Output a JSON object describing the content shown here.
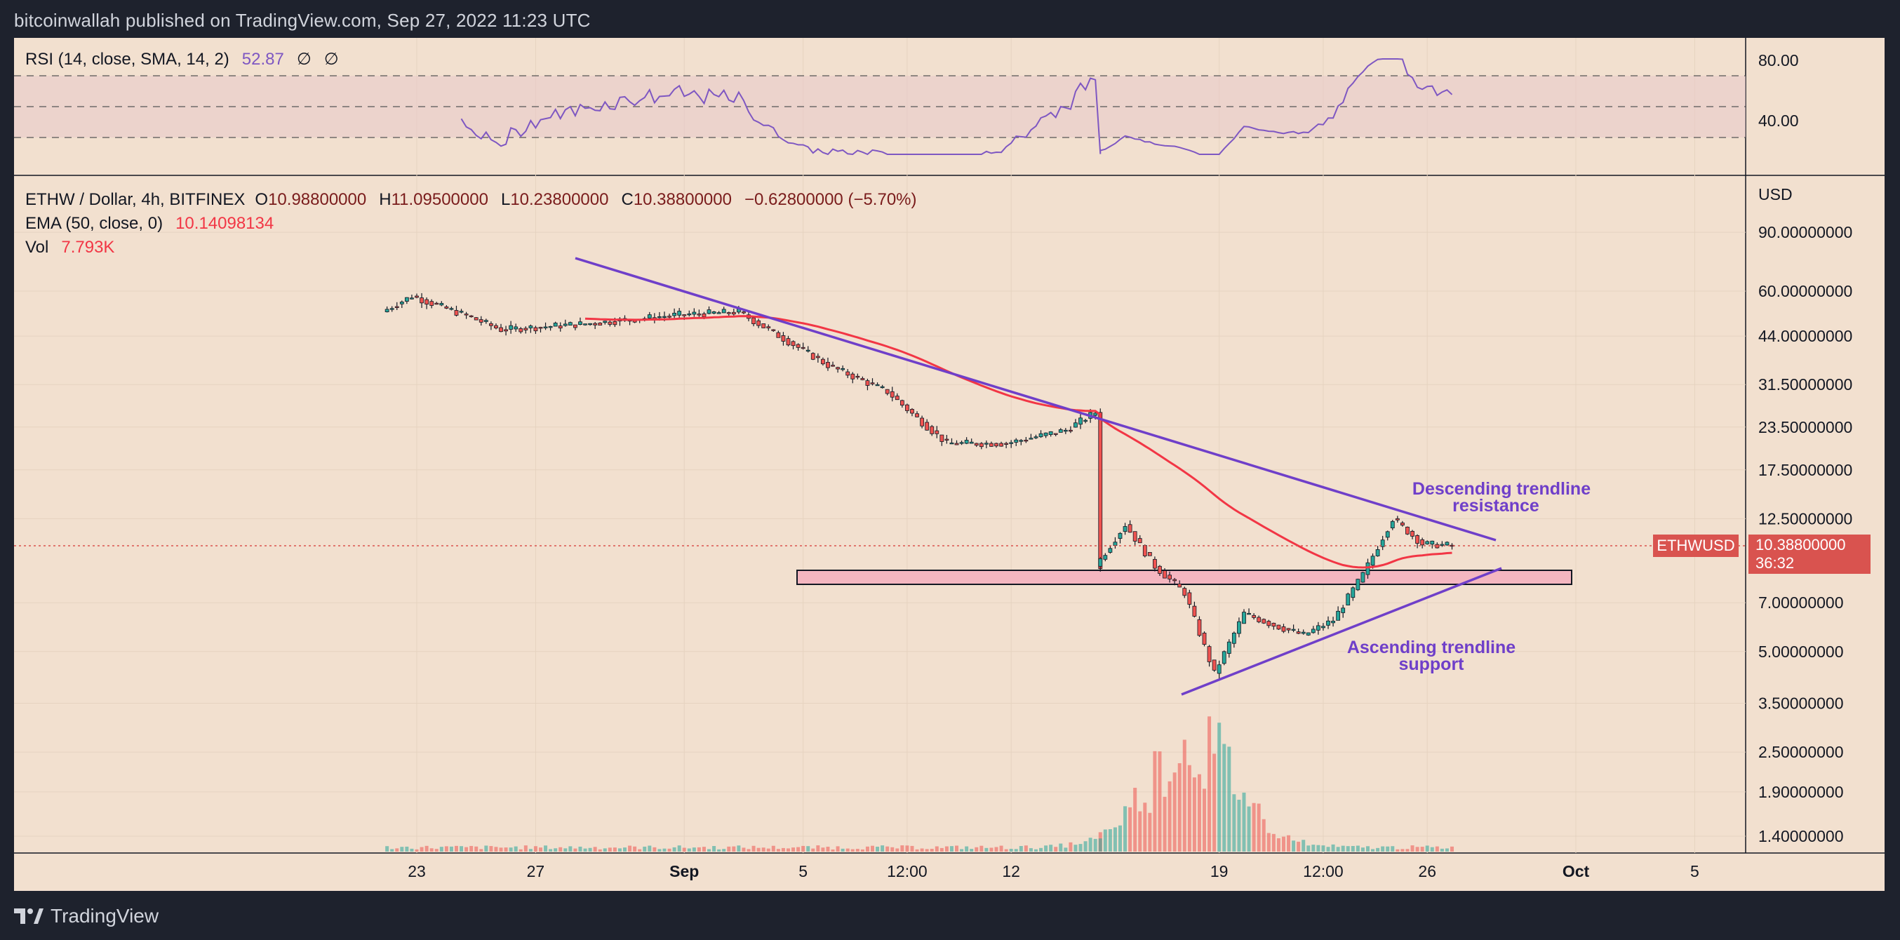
{
  "header": {
    "published_by": "bitcoinwallah published on TradingView.com, Sep 27, 2022 11:23 UTC"
  },
  "rsi_legend": {
    "label": "RSI (14, close, SMA, 14, 2)",
    "value": "52.87",
    "sym1": "∅",
    "sym2": "∅"
  },
  "main_legend": {
    "symbol": "ETHW / Dollar, 4h, BITFINEX",
    "open_label": "O",
    "open": "10.98800000",
    "high_label": "H",
    "high": "11.09500000",
    "low_label": "L",
    "low": "10.23800000",
    "close_label": "C",
    "close": "10.38800000",
    "change": "−0.62800000 (−5.70%)",
    "ema_label": "EMA (50, close, 0)",
    "ema_value": "10.14098134",
    "vol_label": "Vol",
    "vol_value": "7.793K"
  },
  "price_axis": {
    "currency": "USD",
    "labels": [
      "90.00000000",
      "60.00000000",
      "44.00000000",
      "31.50000000",
      "23.50000000",
      "17.50000000",
      "12.50000000",
      "7.00000000",
      "5.00000000",
      "3.50000000",
      "2.50000000",
      "1.90000000",
      "1.40000000"
    ]
  },
  "rsi_axis": {
    "labels": [
      "80.00",
      "40.00"
    ]
  },
  "time_axis": {
    "labels": [
      "23",
      "27",
      "Sep",
      "5",
      "12:00",
      "12",
      "19",
      "12:00",
      "26",
      "Oct",
      "5"
    ]
  },
  "price_tag": {
    "symbol": "ETHWUSD",
    "price": "10.38800000",
    "countdown": "36:32"
  },
  "annotations": {
    "resistance_line1": "Descending trendline",
    "resistance_line2": "resistance",
    "support_line1": "Ascending trendline",
    "support_line2": "support"
  },
  "footer": {
    "brand": "TradingView"
  },
  "colors": {
    "background": "#f2e0cf",
    "up_candle": "#26a69a",
    "down_candle": "#ef5350",
    "ema": "#f23645",
    "rsi": "#7e57c2",
    "trendline": "#6f3fc9",
    "zone": "#f4b6c0"
  },
  "chart_data": {
    "type": "candlestick",
    "title": "ETHW / Dollar, 4h, BITFINEX",
    "yscale": "log",
    "ylabel": "USD",
    "approx_close_path": [
      {
        "date": "2022-08-22",
        "close": 52
      },
      {
        "date": "2022-08-23",
        "close": 58
      },
      {
        "date": "2022-08-25",
        "close": 50
      },
      {
        "date": "2022-08-26",
        "close": 46
      },
      {
        "date": "2022-08-29",
        "close": 48
      },
      {
        "date": "2022-09-01",
        "close": 51
      },
      {
        "date": "2022-09-03",
        "close": 52
      },
      {
        "date": "2022-09-04",
        "close": 46
      },
      {
        "date": "2022-09-06",
        "close": 36
      },
      {
        "date": "2022-09-08",
        "close": 30
      },
      {
        "date": "2022-09-09",
        "close": 25
      },
      {
        "date": "2022-09-10",
        "close": 21
      },
      {
        "date": "2022-09-12",
        "close": 21
      },
      {
        "date": "2022-09-14",
        "close": 23
      },
      {
        "date": "2022-09-15",
        "close": 26
      },
      {
        "date": "2022-09-15",
        "close": 9
      },
      {
        "date": "2022-09-16",
        "close": 12
      },
      {
        "date": "2022-09-17",
        "close": 9
      },
      {
        "date": "2022-09-18",
        "close": 7.5
      },
      {
        "date": "2022-09-19",
        "close": 4.3
      },
      {
        "date": "2022-09-20",
        "close": 6.5
      },
      {
        "date": "2022-09-21",
        "close": 6.0
      },
      {
        "date": "2022-09-22",
        "close": 5.6
      },
      {
        "date": "2022-09-23",
        "close": 6.2
      },
      {
        "date": "2022-09-24",
        "close": 8.5
      },
      {
        "date": "2022-09-25",
        "close": 12.5
      },
      {
        "date": "2022-09-26",
        "close": 10.5
      },
      {
        "date": "2022-09-27",
        "close": 10.388
      }
    ],
    "ema_last": 10.14098134,
    "rsi_last": 52.87,
    "rsi_bands": [
      70,
      50,
      30
    ],
    "volume_last": "7.793K",
    "zone": {
      "low": 8.0,
      "high": 8.6
    }
  }
}
